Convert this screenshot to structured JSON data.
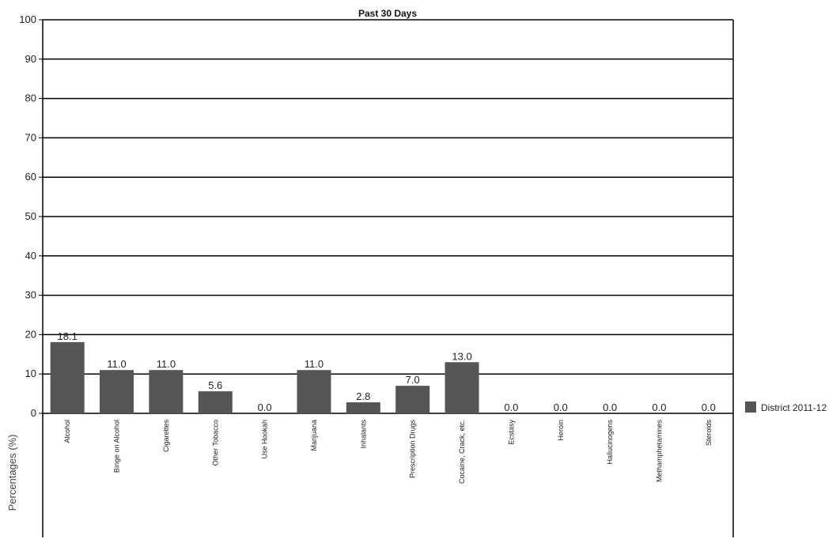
{
  "chart_data": {
    "type": "bar",
    "title": "Past 30 Days",
    "ylabel": "Percentages (%)",
    "xlabel": "",
    "ylim": [
      0,
      100
    ],
    "yticks": [
      0,
      10,
      20,
      30,
      40,
      50,
      60,
      70,
      80,
      90,
      100
    ],
    "grid": true,
    "legend_position": "right",
    "categories": [
      "Alcohol",
      "Binge on Alcohol",
      "Cigarettes",
      "Other Tobacco",
      "Use Hookah",
      "Marijuana",
      "Inhalants",
      "Prescription Drugs",
      "Cocaine, Crack, etc.",
      "Ecstasy",
      "Heroin",
      "Hallucinogens",
      "Methamphetamines",
      "Steroids"
    ],
    "series": [
      {
        "name": "District 2011-12",
        "color": "#555555",
        "values": [
          18.1,
          11.0,
          11.0,
          5.6,
          0.0,
          11.0,
          2.8,
          7.0,
          13.0,
          0.0,
          0.0,
          0.0,
          0.0,
          0.0
        ],
        "labels": [
          "18.1",
          "11.0",
          "11.0",
          "5.6",
          "0.0",
          "11.0",
          "2.8",
          "7.0",
          "13.0",
          "0.0",
          "0.0",
          "0.0",
          "0.0",
          "0.0"
        ]
      }
    ]
  }
}
